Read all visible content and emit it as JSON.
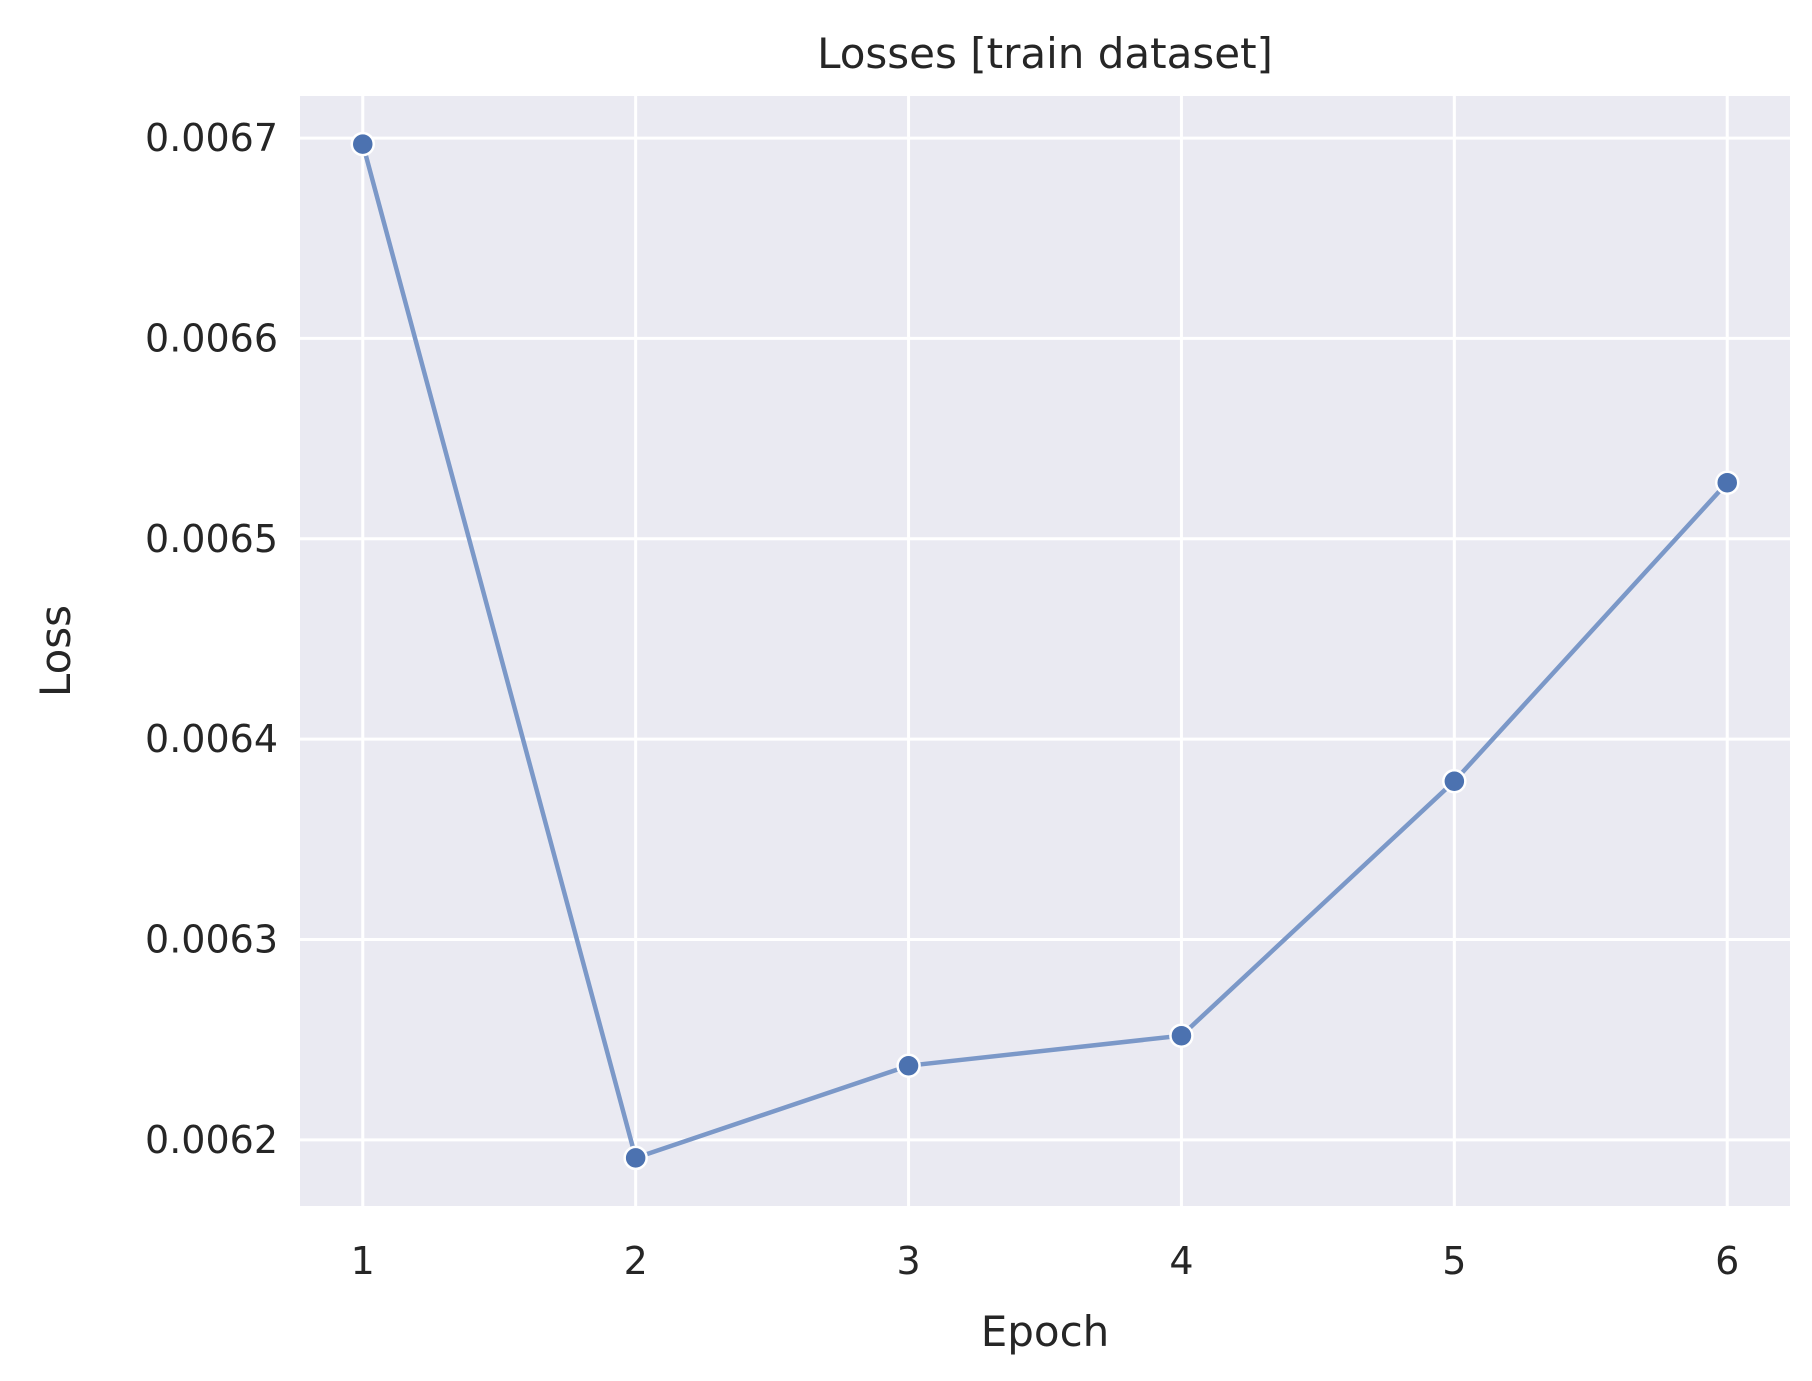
{
  "chart_data": {
    "type": "line",
    "title": "Losses [train dataset]",
    "xlabel": "Epoch",
    "ylabel": "Loss",
    "x": [
      1,
      2,
      3,
      4,
      5,
      6
    ],
    "xticks": [
      "1",
      "2",
      "3",
      "4",
      "5",
      "6"
    ],
    "yticks": [
      "0.0062",
      "0.0063",
      "0.0064",
      "0.0065",
      "0.0066",
      "0.0067"
    ],
    "ytick_values": [
      0.0062,
      0.0063,
      0.0064,
      0.0065,
      0.0066,
      0.0067
    ],
    "series": [
      {
        "values": [
          0.006697,
          0.006191,
          0.006237,
          0.006252,
          0.006379,
          0.006528
        ]
      }
    ],
    "xlim": [
      0.77,
      6.23
    ],
    "ylim": [
      0.006167,
      0.006721
    ],
    "grid": true,
    "colors": {
      "background": "#EAEAF2",
      "grid": "#FFFFFF",
      "line": "#7B98C8",
      "marker": "#4C72B0",
      "marker_edge": "#FFFFFF",
      "text": "#262626"
    }
  }
}
